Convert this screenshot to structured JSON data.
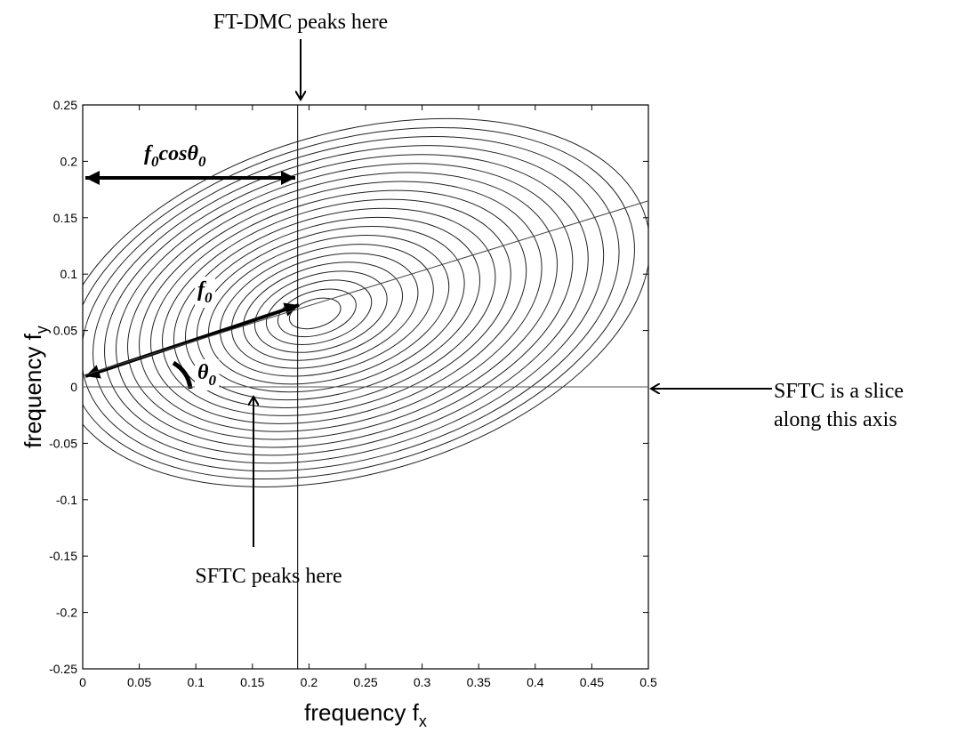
{
  "chart_data": {
    "type": "contour",
    "xlabel": {
      "segments": [
        {
          "text": "frequency f"
        },
        {
          "text": "x",
          "sub": true
        }
      ]
    },
    "ylabel": {
      "segments": [
        {
          "text": "frequency f"
        },
        {
          "text": "y",
          "sub": true
        }
      ]
    },
    "xlim": [
      0,
      0.5
    ],
    "ylim": [
      -0.25,
      0.25
    ],
    "xticks": [
      0,
      0.05,
      0.1,
      0.15,
      0.2,
      0.25,
      0.3,
      0.35,
      0.4,
      0.45,
      0.5
    ],
    "yticks": [
      0.25,
      0.2,
      0.15,
      0.1,
      0.05,
      0,
      -0.05,
      -0.1,
      -0.15,
      -0.2,
      -0.25
    ],
    "vlines": [
      0.19
    ],
    "hlines": [
      0
    ],
    "slope_line": {
      "x": [
        0,
        0.5
      ],
      "y": [
        0.01,
        0.165
      ]
    },
    "grid": false,
    "annotations": [
      {
        "segments": [
          {
            "text": "FT-DMC peaks here"
          }
        ]
      },
      {
        "segments": [
          {
            "text": "f"
          },
          {
            "text": "0",
            "sub": true
          },
          {
            "text": "cos"
          },
          {
            "text": "θ"
          },
          {
            "text": "0",
            "sub": true
          }
        ]
      },
      {
        "segments": [
          {
            "text": "f"
          },
          {
            "text": "0",
            "sub": true
          }
        ]
      },
      {
        "segments": [
          {
            "text": "θ"
          },
          {
            "text": "0",
            "sub": true
          }
        ]
      },
      {
        "segments": [
          {
            "text": "SFTC peaks here"
          }
        ]
      },
      {
        "segments": [
          {
            "text": "SFTC is a slice"
          }
        ]
      },
      {
        "segments": [
          {
            "text": "along this axis"
          }
        ]
      }
    ]
  }
}
